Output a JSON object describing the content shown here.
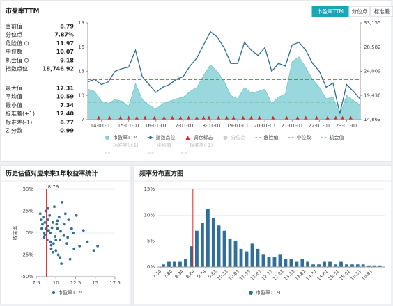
{
  "header": {
    "title": "市盈率TTM",
    "tabs": [
      "市盈率TTM",
      "分位点",
      "标准差"
    ],
    "active_tab": 0
  },
  "stats": {
    "groups": [
      [
        {
          "label": "当前值",
          "value": "8.79"
        },
        {
          "label": "分位点",
          "value": "7.87%"
        },
        {
          "label": "危险值",
          "value": "11.97",
          "info": true
        },
        {
          "label": "中位数",
          "value": "10.07"
        },
        {
          "label": "机会值",
          "value": "9.18",
          "info": true
        },
        {
          "label": "指数点位",
          "value": "18,746.92"
        }
      ],
      [
        {
          "label": "最大值",
          "value": "17.31"
        },
        {
          "label": "平均值",
          "value": "10.59"
        },
        {
          "label": "最小值",
          "value": "7.34"
        },
        {
          "label": "标准差(+1)",
          "value": "12.40"
        },
        {
          "label": "标准差(-1)",
          "value": "8.77"
        },
        {
          "label": "Z 分数",
          "value": "-0.99"
        }
      ]
    ]
  },
  "chart_data": [
    {
      "type": "combo",
      "x": [
        2013.5,
        2013.75,
        2014,
        2014.25,
        2014.5,
        2014.75,
        2015,
        2015.25,
        2015.5,
        2015.75,
        2016,
        2016.25,
        2016.5,
        2016.75,
        2017,
        2017.25,
        2017.5,
        2017.75,
        2018,
        2018.25,
        2018.5,
        2018.75,
        2019,
        2019.25,
        2019.5,
        2019.75,
        2020,
        2020.25,
        2020.5,
        2020.75,
        2021,
        2021.25,
        2021.5,
        2021.75,
        2022,
        2022.25,
        2022.5,
        2022.75,
        2023,
        2023.25,
        2023.5
      ],
      "xlim": [
        2013.5,
        2023.5
      ],
      "xticks": [
        {
          "value": 2014,
          "label": "14-01-01"
        },
        {
          "value": 2015,
          "label": "15-01-01"
        },
        {
          "value": 2016,
          "label": "16-01-01"
        },
        {
          "value": 2017,
          "label": "17-01-01"
        },
        {
          "value": 2018,
          "label": "18-01-01"
        },
        {
          "value": 2019,
          "label": "19-01-01"
        },
        {
          "value": 2020,
          "label": "20-01-01"
        },
        {
          "value": 2021,
          "label": "21-01-01"
        },
        {
          "value": 2022,
          "label": "22-01-01"
        },
        {
          "value": 2023,
          "label": "23-01-01"
        }
      ],
      "ylim": [
        7,
        19
      ],
      "yticks": [
        7,
        10,
        13,
        16,
        19
      ],
      "y2lim": [
        14863,
        33155
      ],
      "y2ticks": [
        {
          "value": 14863,
          "label": "14,863"
        },
        {
          "value": 19436,
          "label": "19,436"
        },
        {
          "value": 24009,
          "label": "24,009"
        },
        {
          "value": 28582,
          "label": "28,582"
        },
        {
          "value": 33155,
          "label": "33,155"
        }
      ],
      "series": [
        {
          "name": "市盈率TTM",
          "color": "#7fd0d6",
          "values": [
            10.8,
            10.5,
            9.3,
            9.0,
            9.5,
            9.3,
            8.6,
            11.5,
            9.5,
            8.8,
            8.3,
            9.0,
            9.3,
            9.6,
            9.8,
            10.5,
            11.0,
            12.5,
            13.8,
            13.0,
            11.8,
            10.0,
            9.6,
            11.0,
            10.3,
            10.5,
            10.8,
            9.0,
            9.8,
            10.2,
            14.2,
            14.8,
            13.5,
            12.0,
            11.0,
            9.6,
            9.8,
            7.6,
            10.0,
            9.4,
            8.79
          ]
        },
        {
          "name": "指数点位",
          "color": "#2a6b93",
          "axis": "y2",
          "values": [
            22000,
            22500,
            21500,
            22000,
            24000,
            24500,
            24800,
            28000,
            23000,
            21500,
            20000,
            21000,
            21500,
            22500,
            23000,
            25000,
            26500,
            29000,
            31500,
            30500,
            28500,
            25500,
            25500,
            29500,
            28000,
            27000,
            28500,
            24000,
            25500,
            25000,
            29000,
            29500,
            28000,
            25500,
            24000,
            21000,
            21800,
            16000,
            21500,
            20200,
            18746.92
          ]
        }
      ],
      "markers": {
        "name": "调仓标志",
        "color": "#e0262a",
        "x": [
          2013.9,
          2014.3,
          2014.7,
          2015,
          2015.3,
          2015.6,
          2015.95,
          2016.3,
          2016.6,
          2016.9,
          2017.2,
          2017.5,
          2017.75,
          2017.95,
          2018.3,
          2018.6,
          2018.85,
          2019.2,
          2019.5,
          2019.8,
          2020.3,
          2020.8,
          2021.2,
          2021.5,
          2021.9,
          2022.3,
          2022.6,
          2022.85,
          2023.15
        ]
      },
      "lines": [
        {
          "name": "危险值",
          "value": 11.97,
          "color": "#d9464b"
        },
        {
          "name": "中位数",
          "value": 10.07,
          "color": "#666666"
        },
        {
          "name": "机会值",
          "value": 9.18,
          "color": "#3c9a5e"
        }
      ],
      "inactive": [
        "分位点",
        "标准差(+1)",
        "平均值",
        "标准差(-1)"
      ]
    },
    {
      "type": "scatter",
      "title": "历史估值对应未来1年收益率统计",
      "y_label": "收益率",
      "legend": "市盈率TTM",
      "color": "#2f6f9a",
      "reference_x": 8.79,
      "grid": true,
      "x": [
        8.0,
        8.1,
        8.2,
        8.3,
        8.4,
        8.5,
        8.5,
        8.6,
        8.7,
        8.8,
        8.9,
        9.0,
        9.0,
        9.1,
        9.2,
        9.3,
        9.3,
        9.4,
        9.5,
        9.6,
        9.7,
        9.8,
        9.9,
        10.0,
        10.1,
        10.2,
        10.3,
        10.4,
        10.5,
        10.6,
        10.8,
        11.0,
        11.2,
        11.4,
        11.6,
        11.8,
        12.0,
        12.3,
        12.6,
        13.0,
        13.5,
        14.0,
        14.8,
        15.3,
        8.6,
        9.0,
        9.6,
        10.2,
        10.7,
        11.1,
        11.5,
        12.2,
        8.9,
        9.4,
        10.0,
        10.5
      ],
      "values": [
        22,
        15,
        5,
        10,
        18,
        0,
        -5,
        12,
        25,
        5,
        -8,
        8,
        15,
        3,
        20,
        -10,
        0,
        -18,
        6,
        12,
        -12,
        30,
        -4,
        -20,
        10,
        5,
        -25,
        18,
        -8,
        2,
        35,
        -3,
        22,
        -12,
        15,
        -30,
        5,
        -18,
        20,
        -15,
        3,
        -10,
        -20,
        -15,
        -2,
        28,
        -22,
        14,
        -35,
        10,
        -5,
        0,
        2,
        -14,
        -8,
        -28
      ],
      "xlim": [
        7.5,
        17.5
      ],
      "xticks": [
        7.5,
        10,
        12.5,
        15,
        17.5
      ],
      "ylim": [
        -50,
        50
      ],
      "yticks": [
        {
          "value": 50,
          "label": "50%"
        },
        {
          "value": 25,
          "label": "25%"
        },
        {
          "value": 0,
          "label": "0%"
        },
        {
          "value": -25,
          "label": "-25%"
        },
        {
          "value": -50,
          "label": "-50%"
        }
      ]
    },
    {
      "type": "histogram",
      "title": "频率分布直方图",
      "legend": "市盈率TTM",
      "color": "#2f6f9a",
      "reference_x": 8.79,
      "grid": true,
      "bins": [
        7.34,
        7.59,
        7.84,
        8.09,
        8.34,
        8.59,
        8.84,
        9.09,
        9.34,
        9.59,
        9.83,
        10.08,
        10.33,
        10.58,
        10.83,
        11.08,
        11.33,
        11.58,
        11.83,
        12.08,
        12.33,
        12.58,
        12.83,
        13.08,
        13.33,
        13.58,
        13.82,
        14.07,
        14.32,
        14.57,
        14.82,
        15.07,
        15.32,
        15.57,
        15.82,
        16.07,
        16.31,
        16.56,
        16.81,
        17.06,
        17.31
      ],
      "values": [
        0.5,
        1,
        1,
        1,
        1.5,
        4,
        7,
        8.5,
        11.2,
        9.5,
        8,
        7,
        5.5,
        5,
        3.5,
        3,
        4.5,
        3.5,
        2.5,
        2,
        2,
        2.5,
        1.5,
        1.5,
        1,
        1.5,
        1,
        0.5,
        0.5,
        1,
        1,
        0.5,
        1,
        0.5,
        0.5,
        0.5,
        0.5,
        0.3,
        0.3,
        0.3
      ],
      "xlim": [
        7.2,
        17.4
      ],
      "xticks": [
        7.34,
        7.84,
        8.34,
        8.84,
        9.34,
        9.83,
        10.33,
        10.83,
        11.33,
        11.83,
        12.33,
        12.83,
        13.33,
        13.82,
        14.32,
        14.82,
        15.32,
        15.82,
        16.31,
        16.81
      ],
      "ylim": [
        0,
        15
      ],
      "yticks": [
        {
          "value": 0,
          "label": "0%"
        },
        {
          "value": 5,
          "label": "5%"
        },
        {
          "value": 10,
          "label": "10%"
        },
        {
          "value": 15,
          "label": "15%"
        }
      ]
    }
  ]
}
